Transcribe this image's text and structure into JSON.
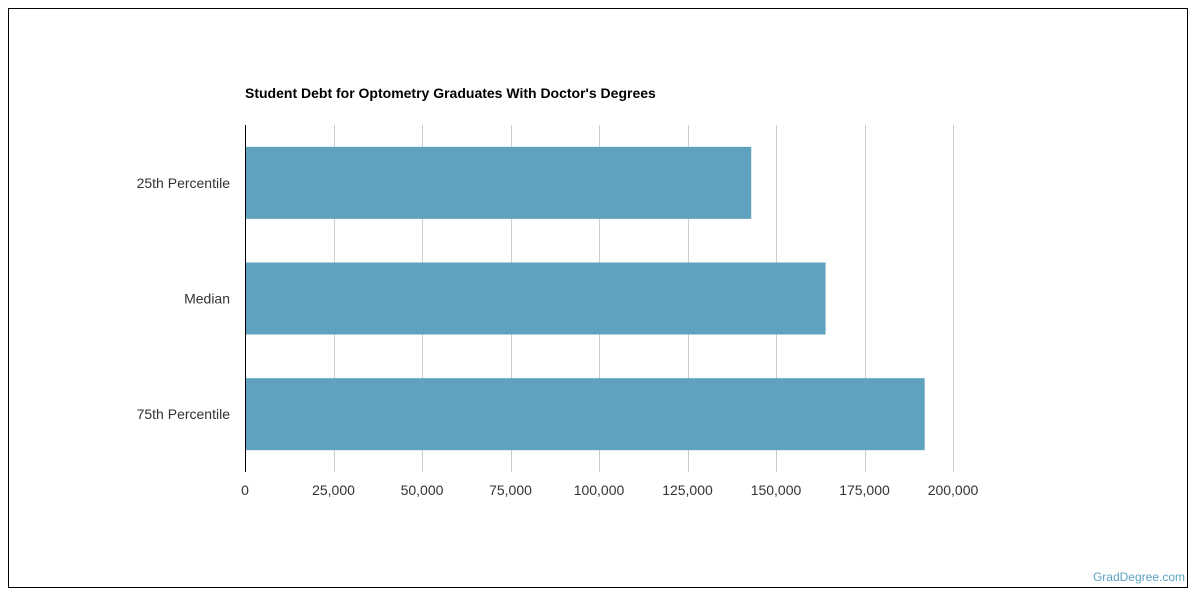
{
  "chart_data": {
    "type": "bar",
    "orientation": "horizontal",
    "title": "Student Debt for Optometry Graduates With Doctor's Degrees",
    "xlabel": "",
    "ylabel": "",
    "categories": [
      "25th Percentile",
      "Median",
      "75th Percentile"
    ],
    "values": [
      143000,
      164000,
      192000
    ],
    "xlim": [
      0,
      200000
    ],
    "x_ticks": [
      0,
      25000,
      50000,
      75000,
      100000,
      125000,
      150000,
      175000,
      200000
    ],
    "x_tick_labels": [
      "0",
      "25,000",
      "50,000",
      "75,000",
      "100,000",
      "125,000",
      "150,000",
      "175,000",
      "200,000"
    ],
    "grid": "vertical",
    "bar_color": "#5fa2be",
    "grid_color": "#cccccc",
    "axis_color": "#000000"
  },
  "watermark": "GradDegree.com"
}
